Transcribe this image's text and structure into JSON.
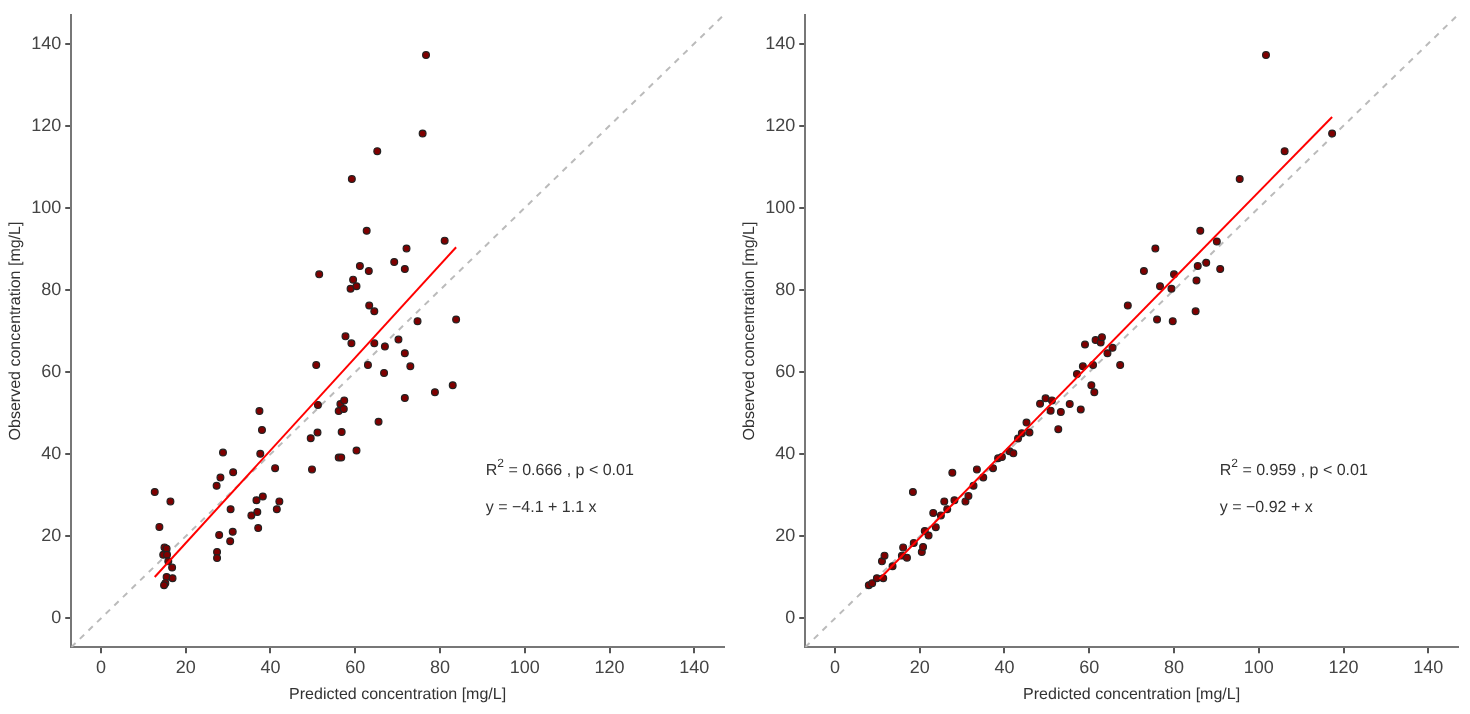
{
  "chart_data": [
    {
      "type": "scatter",
      "xlabel": "Predicted concentration [mg/L]",
      "ylabel": "Observed concentration [mg/L]",
      "xlim": [
        -7,
        147
      ],
      "ylim": [
        -7,
        147
      ],
      "xticks": [
        0,
        20,
        40,
        60,
        80,
        100,
        120,
        140
      ],
      "yticks": [
        0,
        20,
        40,
        60,
        80,
        100,
        120,
        140
      ],
      "grid": false,
      "legend": false,
      "marker": "circle",
      "annotations": [
        "R$^{2}$ = 0.666 , p < 0.01",
        "y = −4.1 + 1.1 x"
      ],
      "series": [
        {
          "type": "line",
          "color": "#bbbbbb",
          "line_style": "dashed",
          "marker": "none",
          "x": [
            -7,
            147
          ],
          "values": [
            -7,
            147
          ]
        },
        {
          "type": "scatter",
          "color": "#7f0000",
          "x": [
            12.7,
            13.8,
            16.4,
            15.0,
            15.5,
            14.7,
            15.6,
            15.9,
            16.8,
            15.5,
            16.9,
            15.2,
            14.9,
            27.3,
            28.2,
            28.8,
            31.2,
            27.9,
            27.4,
            27.4,
            30.6,
            31.1,
            30.5,
            37.4,
            38.0,
            37.6,
            41.1,
            36.7,
            38.2,
            35.5,
            36.9,
            37.1,
            41.5,
            42.1,
            51.5,
            50.8,
            51.2,
            51.1,
            49.5,
            49.8,
            57.7,
            59.1,
            56.5,
            57.4,
            56.1,
            57.3,
            56.8,
            56.1,
            56.7,
            60.3,
            59.2,
            58.9,
            59.5,
            60.3,
            61.1,
            62.7,
            63.2,
            63.3,
            63.0,
            76.7,
            75.9,
            65.2,
            69.2,
            71.7,
            72.1,
            81.1,
            64.5,
            74.7,
            83.8,
            64.5,
            67.0,
            70.2,
            71.7,
            66.8,
            73.0,
            71.7,
            65.5,
            78.8,
            83.0
          ],
          "values": [
            30.8,
            22.3,
            28.5,
            17.3,
            17.0,
            15.5,
            15.5,
            13.9,
            12.4,
            10.1,
            9.8,
            8.6,
            8.1,
            32.3,
            34.3,
            40.4,
            35.6,
            20.3,
            16.2,
            14.7,
            26.6,
            21.1,
            18.8,
            50.5,
            45.9,
            40.1,
            36.6,
            28.8,
            29.7,
            25.1,
            25.9,
            22.0,
            26.6,
            28.5,
            83.8,
            61.7,
            52.0,
            45.3,
            43.9,
            36.3,
            68.7,
            67.0,
            52.2,
            53.1,
            50.5,
            51.0,
            45.4,
            39.2,
            39.2,
            40.9,
            107.0,
            80.3,
            82.5,
            80.9,
            85.8,
            94.4,
            84.6,
            76.2,
            61.7,
            137.2,
            118.1,
            113.8,
            86.8,
            85.1,
            90.1,
            92.0,
            74.8,
            72.4,
            72.8,
            67.0,
            66.2,
            67.9,
            64.6,
            59.8,
            61.4,
            53.7,
            47.9,
            55.1,
            56.8
          ]
        },
        {
          "type": "line",
          "color": "#ff0000",
          "line_style": "solid",
          "marker": "none",
          "x": [
            12.7,
            83.8
          ],
          "values": [
            10.1,
            90.4
          ]
        }
      ]
    },
    {
      "type": "scatter",
      "xlabel": "Predicted concentration [mg/L]",
      "ylabel": "Observed concentration [mg/L]",
      "xlim": [
        -7,
        147
      ],
      "ylim": [
        -7,
        147
      ],
      "xticks": [
        0,
        20,
        40,
        60,
        80,
        100,
        120,
        140
      ],
      "yticks": [
        0,
        20,
        40,
        60,
        80,
        100,
        120,
        140
      ],
      "grid": false,
      "legend": false,
      "marker": "circle",
      "annotations": [
        "R$^{2}$ = 0.959 , p < 0.01",
        "y = −0.92 + x"
      ],
      "series": [
        {
          "type": "line",
          "color": "#bbbbbb",
          "line_style": "dashed",
          "marker": "none",
          "x": [
            -7,
            147
          ],
          "values": [
            -7,
            147
          ]
        },
        {
          "type": "scatter",
          "color": "#7f0000",
          "x": [
            8.0,
            8.8,
            9.9,
            11.4,
            11.1,
            11.7,
            13.6,
            15.8,
            16.1,
            17.0,
            18.4,
            18.6,
            20.5,
            20.8,
            21.2,
            22.1,
            23.2,
            23.8,
            25.0,
            25.8,
            26.5,
            27.7,
            28.2,
            30.8,
            31.5,
            32.7,
            33.5,
            35.0,
            37.3,
            38.5,
            39.4,
            41.2,
            42.1,
            43.2,
            44.1,
            45.2,
            45.9,
            48.4,
            49.7,
            50.9,
            51.2,
            52.7,
            53.3,
            55.4,
            57.1,
            58.0,
            58.5,
            59.0,
            60.5,
            61.2,
            60.9,
            61.5,
            62.7,
            63.0,
            64.3,
            65.5,
            67.3,
            69.1,
            72.9,
            75.6,
            76.0,
            76.7,
            79.7,
            79.4,
            80.0,
            85.1,
            85.3,
            85.6,
            86.2,
            87.6,
            90.1,
            90.9,
            95.5,
            101.7,
            106.1,
            117.3
          ],
          "values": [
            8.1,
            8.6,
            9.8,
            9.8,
            13.9,
            15.3,
            12.7,
            15.3,
            17.3,
            14.8,
            30.8,
            18.4,
            16.2,
            17.4,
            21.3,
            20.2,
            25.7,
            22.2,
            25.1,
            28.5,
            26.6,
            35.5,
            28.8,
            28.5,
            29.8,
            32.3,
            36.3,
            34.3,
            36.6,
            39.0,
            39.3,
            40.7,
            40.2,
            43.8,
            45.1,
            47.7,
            45.3,
            52.3,
            53.6,
            50.6,
            53.1,
            46.1,
            50.3,
            52.2,
            59.5,
            50.9,
            61.4,
            66.7,
            56.8,
            55.1,
            61.7,
            67.8,
            67.2,
            68.5,
            64.6,
            65.9,
            61.7,
            76.2,
            84.6,
            90.1,
            72.8,
            80.9,
            72.4,
            80.3,
            83.8,
            74.8,
            82.3,
            85.8,
            94.4,
            86.6,
            91.8,
            85.1,
            107.0,
            137.2,
            113.8,
            118.1
          ]
        },
        {
          "type": "line",
          "color": "#ff0000",
          "line_style": "solid",
          "marker": "none",
          "x": [
            10.5,
            117.3
          ],
          "values": [
            9.6,
            122.1
          ]
        }
      ]
    }
  ]
}
